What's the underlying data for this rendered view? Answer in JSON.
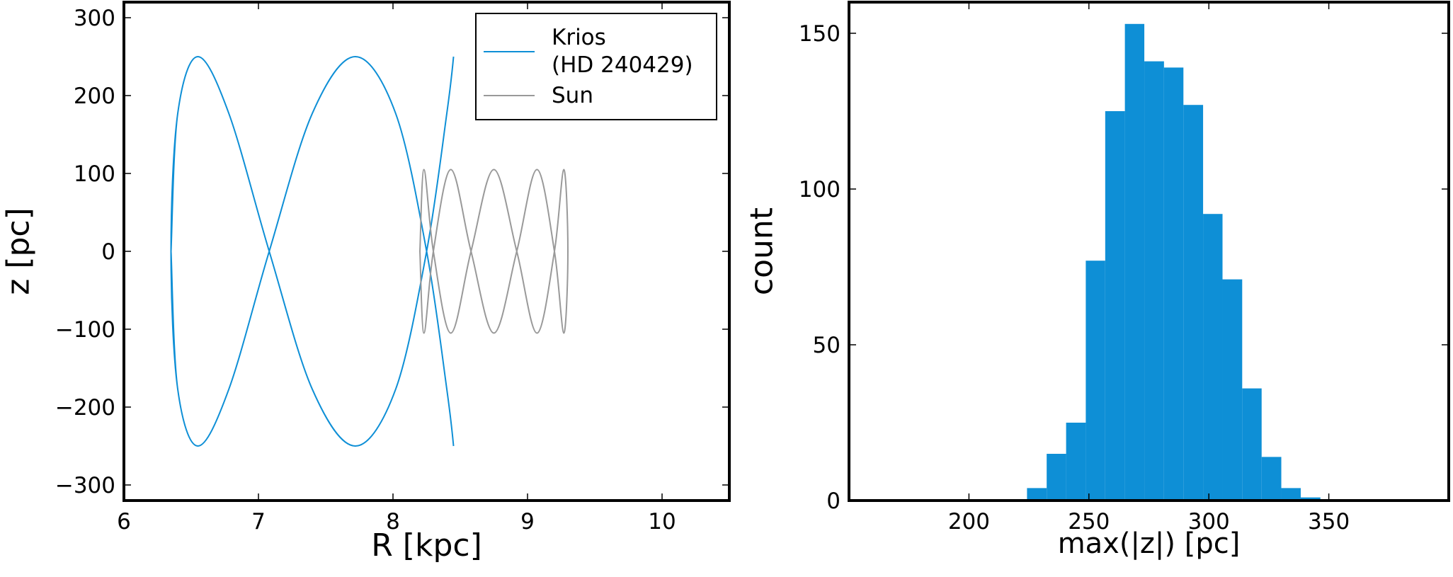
{
  "chart_data": [
    {
      "type": "line",
      "xlabel": "R [kpc]",
      "ylabel": "z [pc]",
      "xlim": [
        6,
        10.5
      ],
      "ylim": [
        -320,
        320
      ],
      "xticks": [
        6,
        7,
        8,
        9,
        10
      ],
      "yticks": [
        300,
        200,
        100,
        0,
        {
          "value": -100,
          "label": "−100"
        },
        {
          "value": -200,
          "label": "−200"
        },
        {
          "value": -300,
          "label": "−300"
        }
      ],
      "legend": "upper right",
      "series": [
        {
          "name": "Krios\n(HD 240429)",
          "color": "#0e8fd6",
          "x": [
            6.35,
            6.4,
            6.55,
            6.78,
            7.08,
            7.4,
            7.72,
            8.02,
            8.25,
            8.4,
            8.45,
            8.4,
            8.25,
            8.02,
            7.72,
            7.4,
            7.08,
            6.78,
            6.55,
            6.4,
            6.35,
            6.4,
            6.55,
            6.78,
            7.08,
            7.4,
            7.72,
            8.02,
            8.25,
            8.4,
            8.45,
            8.4,
            8.25,
            8.02,
            7.72,
            7.4,
            7.08,
            6.78,
            6.55,
            6.4,
            6.35
          ],
          "values": [
            0,
            177,
            250,
            177,
            0,
            -177,
            -250,
            -177,
            0,
            177,
            250,
            177,
            0,
            -177,
            -250,
            -177,
            0,
            177,
            250,
            177,
            0,
            -177,
            -250,
            -177,
            0,
            177,
            250,
            177,
            0,
            -177,
            -250,
            -177,
            0,
            177,
            250,
            177,
            0,
            -177,
            -250,
            -177,
            0
          ]
        },
        {
          "name": "Sun",
          "color": "#999999",
          "x": [
            8.2,
            8.23,
            8.3,
            8.43,
            8.58,
            8.75,
            8.92,
            9.07,
            9.2,
            9.27,
            9.3,
            9.27,
            9.2,
            9.07,
            8.92,
            8.75,
            8.58,
            8.43,
            8.3,
            8.23,
            8.2
          ],
          "values": [
            0,
            105,
            0,
            -105,
            0,
            105,
            0,
            -105,
            0,
            105,
            0,
            -105,
            0,
            105,
            0,
            -105,
            0,
            105,
            0,
            -105,
            0
          ]
        }
      ]
    },
    {
      "type": "histogram",
      "xlabel": "max(|z|) [pc]",
      "ylabel": "count",
      "color": "#0e8fd6",
      "xlim": [
        150,
        400
      ],
      "ylim": [
        0,
        160
      ],
      "xticks": [
        200,
        250,
        300,
        350
      ],
      "yticks": [
        0,
        50,
        100,
        150
      ],
      "bins": [
        224.2,
        232.4,
        240.5,
        248.7,
        256.8,
        265.0,
        273.1,
        281.3,
        289.4,
        297.6,
        305.7,
        313.9,
        322.0,
        330.2,
        338.3,
        346.5
      ],
      "values": [
        4,
        15,
        25,
        77,
        125,
        153,
        141,
        139,
        127,
        92,
        71,
        36,
        14,
        4,
        1
      ]
    }
  ]
}
